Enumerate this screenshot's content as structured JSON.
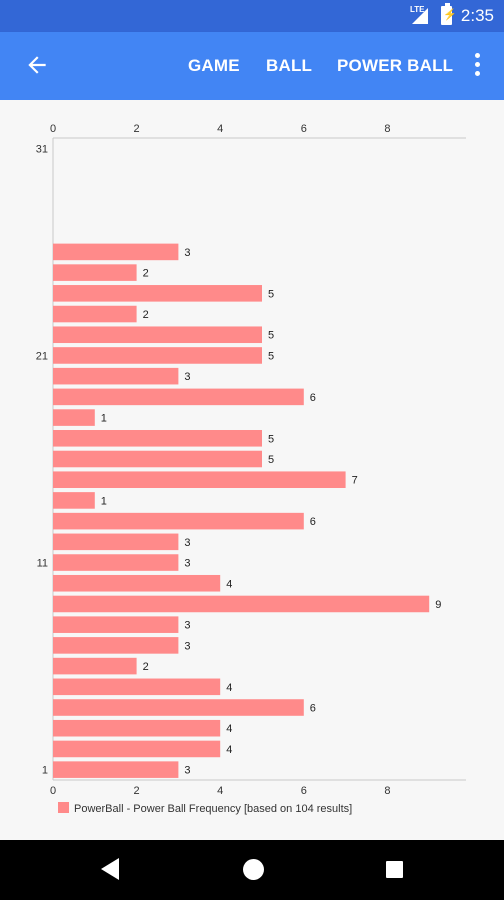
{
  "status_bar": {
    "time": "2:35",
    "network": "LTE"
  },
  "app_bar": {
    "back_icon": "arrow-back-icon",
    "menu": [
      "GAME",
      "BALL",
      "POWER BALL"
    ],
    "more_icon": "more-vert-icon"
  },
  "colors": {
    "status_bar": "#3367d6",
    "app_bar": "#4285f4",
    "bar_fill": "#ff8a8a"
  },
  "chart_data": {
    "type": "bar",
    "orientation": "horizontal",
    "categories": [
      1,
      2,
      3,
      4,
      5,
      6,
      7,
      8,
      9,
      10,
      11,
      12,
      13,
      14,
      15,
      16,
      17,
      18,
      19,
      20,
      21,
      22,
      23,
      24,
      25,
      26
    ],
    "values": [
      3,
      4,
      4,
      6,
      4,
      2,
      3,
      3,
      9,
      4,
      3,
      3,
      6,
      1,
      7,
      5,
      5,
      1,
      6,
      3,
      5,
      5,
      2,
      5,
      2,
      3
    ],
    "series": [
      {
        "name": "PowerBall - Power Ball Frequency [based on 104 results]",
        "values": [
          3,
          4,
          4,
          6,
          4,
          2,
          3,
          3,
          9,
          4,
          3,
          3,
          6,
          1,
          7,
          5,
          5,
          1,
          6,
          3,
          5,
          5,
          2,
          5,
          2,
          3
        ]
      }
    ],
    "category_axis_ticks": [
      "1",
      "11",
      "21",
      "31"
    ],
    "category_range": [
      1,
      31
    ],
    "value_axis_ticks": [
      "0",
      "2",
      "4",
      "6",
      "8"
    ],
    "xlim": [
      0,
      9.8
    ],
    "value_axis_position": "top-and-bottom",
    "grid": false,
    "legend": {
      "position": "bottom-left",
      "label": "PowerBall - Power Ball Frequency [based on 104 results]"
    }
  },
  "nav_bar": {
    "back": "nav-back-icon",
    "home": "nav-home-icon",
    "recent": "nav-recent-icon"
  }
}
